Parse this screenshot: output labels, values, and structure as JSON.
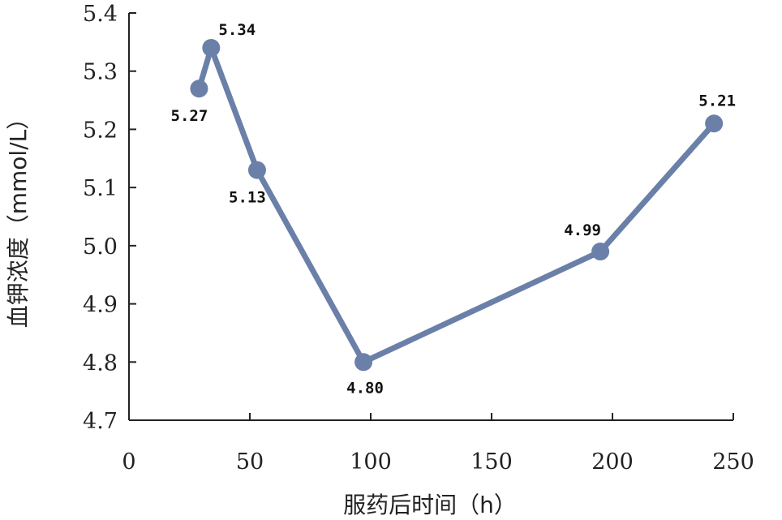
{
  "chart_data": {
    "type": "line",
    "title": "",
    "xlabel": "服药后时间（h）",
    "ylabel": "血钾浓度（mmol/L）",
    "xlim": [
      0,
      250
    ],
    "ylim": [
      4.7,
      5.4
    ],
    "xticks": [
      0,
      50,
      100,
      150,
      200,
      250
    ],
    "yticks": [
      4.7,
      4.8,
      4.9,
      5.0,
      5.1,
      5.2,
      5.3,
      5.4
    ],
    "ytick_labels": [
      "4.7",
      "4.8",
      "4.9",
      "5.0",
      "5.1",
      "5.2",
      "5.3",
      "5.4"
    ],
    "xtick_labels": [
      "0",
      "50",
      "100",
      "150",
      "200",
      "250"
    ],
    "series": [
      {
        "color": "#6b80a8",
        "points": [
          {
            "x": 29,
            "y": 5.27,
            "label": "5.27",
            "label_pos": "below-left"
          },
          {
            "x": 34,
            "y": 5.34,
            "label": "5.34",
            "label_pos": "above-right"
          },
          {
            "x": 53,
            "y": 5.13,
            "label": "5.13",
            "label_pos": "below-left"
          },
          {
            "x": 97,
            "y": 4.8,
            "label": "4.80",
            "label_pos": "below"
          },
          {
            "x": 195,
            "y": 4.99,
            "label": "4.99",
            "label_pos": "above-left"
          },
          {
            "x": 242,
            "y": 5.21,
            "label": "5.21",
            "label_pos": "above"
          }
        ]
      }
    ],
    "grid": false,
    "legend": "none"
  }
}
